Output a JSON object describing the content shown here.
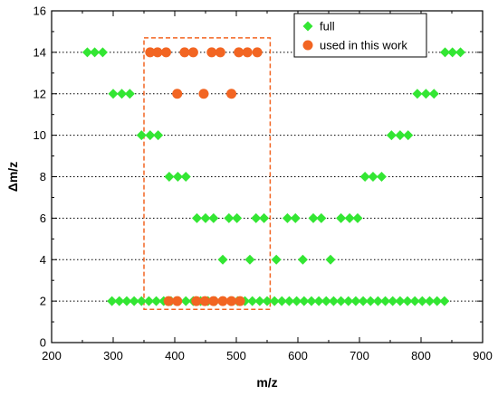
{
  "chart_data": {
    "type": "scatter",
    "xlabel": "m/z",
    "ylabel": "Δm/z",
    "xlim": [
      200,
      900
    ],
    "ylim": [
      0,
      16
    ],
    "x_ticks": [
      "200",
      "300",
      "400",
      "500",
      "600",
      "700",
      "800",
      "900"
    ],
    "y_ticks": [
      "0",
      "2",
      "4",
      "6",
      "8",
      "10",
      "12",
      "14",
      "16"
    ],
    "dotted_reference_lines_y": [
      2,
      4,
      6,
      8,
      10,
      12,
      14
    ],
    "legend_position": "top-right",
    "highlight_box": {
      "x": [
        350,
        555
      ],
      "y": [
        1.6,
        14.7
      ],
      "style": "dashed",
      "color": "#f26522"
    },
    "series": [
      {
        "name": "full",
        "marker": "diamond",
        "color": "#33e633",
        "points": [
          [
            258,
            14
          ],
          [
            270,
            14
          ],
          [
            283,
            14
          ],
          [
            839,
            14
          ],
          [
            851,
            14
          ],
          [
            864,
            14
          ],
          [
            300,
            12
          ],
          [
            314,
            12
          ],
          [
            327,
            12
          ],
          [
            794,
            12
          ],
          [
            808,
            12
          ],
          [
            821,
            12
          ],
          [
            346,
            10
          ],
          [
            360,
            10
          ],
          [
            373,
            10
          ],
          [
            752,
            10
          ],
          [
            766,
            10
          ],
          [
            779,
            10
          ],
          [
            391,
            8
          ],
          [
            405,
            8
          ],
          [
            418,
            8
          ],
          [
            709,
            8
          ],
          [
            722,
            8
          ],
          [
            736,
            8
          ],
          [
            436,
            6
          ],
          [
            450,
            6
          ],
          [
            463,
            6
          ],
          [
            488,
            6
          ],
          [
            501,
            6
          ],
          [
            532,
            6
          ],
          [
            545,
            6
          ],
          [
            583,
            6
          ],
          [
            596,
            6
          ],
          [
            625,
            6
          ],
          [
            638,
            6
          ],
          [
            670,
            6
          ],
          [
            684,
            6
          ],
          [
            697,
            6
          ],
          [
            478,
            4
          ],
          [
            522,
            4
          ],
          [
            565,
            4
          ],
          [
            608,
            4
          ],
          [
            653,
            4
          ],
          [
            298,
            2
          ],
          [
            310,
            2
          ],
          [
            322,
            2
          ],
          [
            334,
            2
          ],
          [
            346,
            2
          ],
          [
            358,
            2
          ],
          [
            370,
            2
          ],
          [
            382,
            2
          ],
          [
            394,
            2
          ],
          [
            406,
            2
          ],
          [
            418,
            2
          ],
          [
            430,
            2
          ],
          [
            442,
            2
          ],
          [
            454,
            2
          ],
          [
            466,
            2
          ],
          [
            478,
            2
          ],
          [
            490,
            2
          ],
          [
            502,
            2
          ],
          [
            514,
            2
          ],
          [
            526,
            2
          ],
          [
            538,
            2
          ],
          [
            550,
            2
          ],
          [
            562,
            2
          ],
          [
            574,
            2
          ],
          [
            586,
            2
          ],
          [
            598,
            2
          ],
          [
            610,
            2
          ],
          [
            622,
            2
          ],
          [
            634,
            2
          ],
          [
            646,
            2
          ],
          [
            658,
            2
          ],
          [
            670,
            2
          ],
          [
            682,
            2
          ],
          [
            694,
            2
          ],
          [
            706,
            2
          ],
          [
            718,
            2
          ],
          [
            730,
            2
          ],
          [
            742,
            2
          ],
          [
            754,
            2
          ],
          [
            766,
            2
          ],
          [
            778,
            2
          ],
          [
            790,
            2
          ],
          [
            802,
            2
          ],
          [
            814,
            2
          ],
          [
            826,
            2
          ],
          [
            838,
            2
          ]
        ]
      },
      {
        "name": "used in this work",
        "marker": "circle",
        "color": "#f26522",
        "points": [
          [
            360,
            14
          ],
          [
            372,
            14
          ],
          [
            386,
            14
          ],
          [
            416,
            14
          ],
          [
            430,
            14
          ],
          [
            460,
            14
          ],
          [
            474,
            14
          ],
          [
            504,
            14
          ],
          [
            518,
            14
          ],
          [
            534,
            14
          ],
          [
            404,
            12
          ],
          [
            447,
            12
          ],
          [
            492,
            12
          ],
          [
            390,
            2
          ],
          [
            404,
            2
          ],
          [
            435,
            2
          ],
          [
            449,
            2
          ],
          [
            463,
            2
          ],
          [
            478,
            2
          ],
          [
            492,
            2
          ],
          [
            506,
            2
          ]
        ]
      }
    ]
  }
}
